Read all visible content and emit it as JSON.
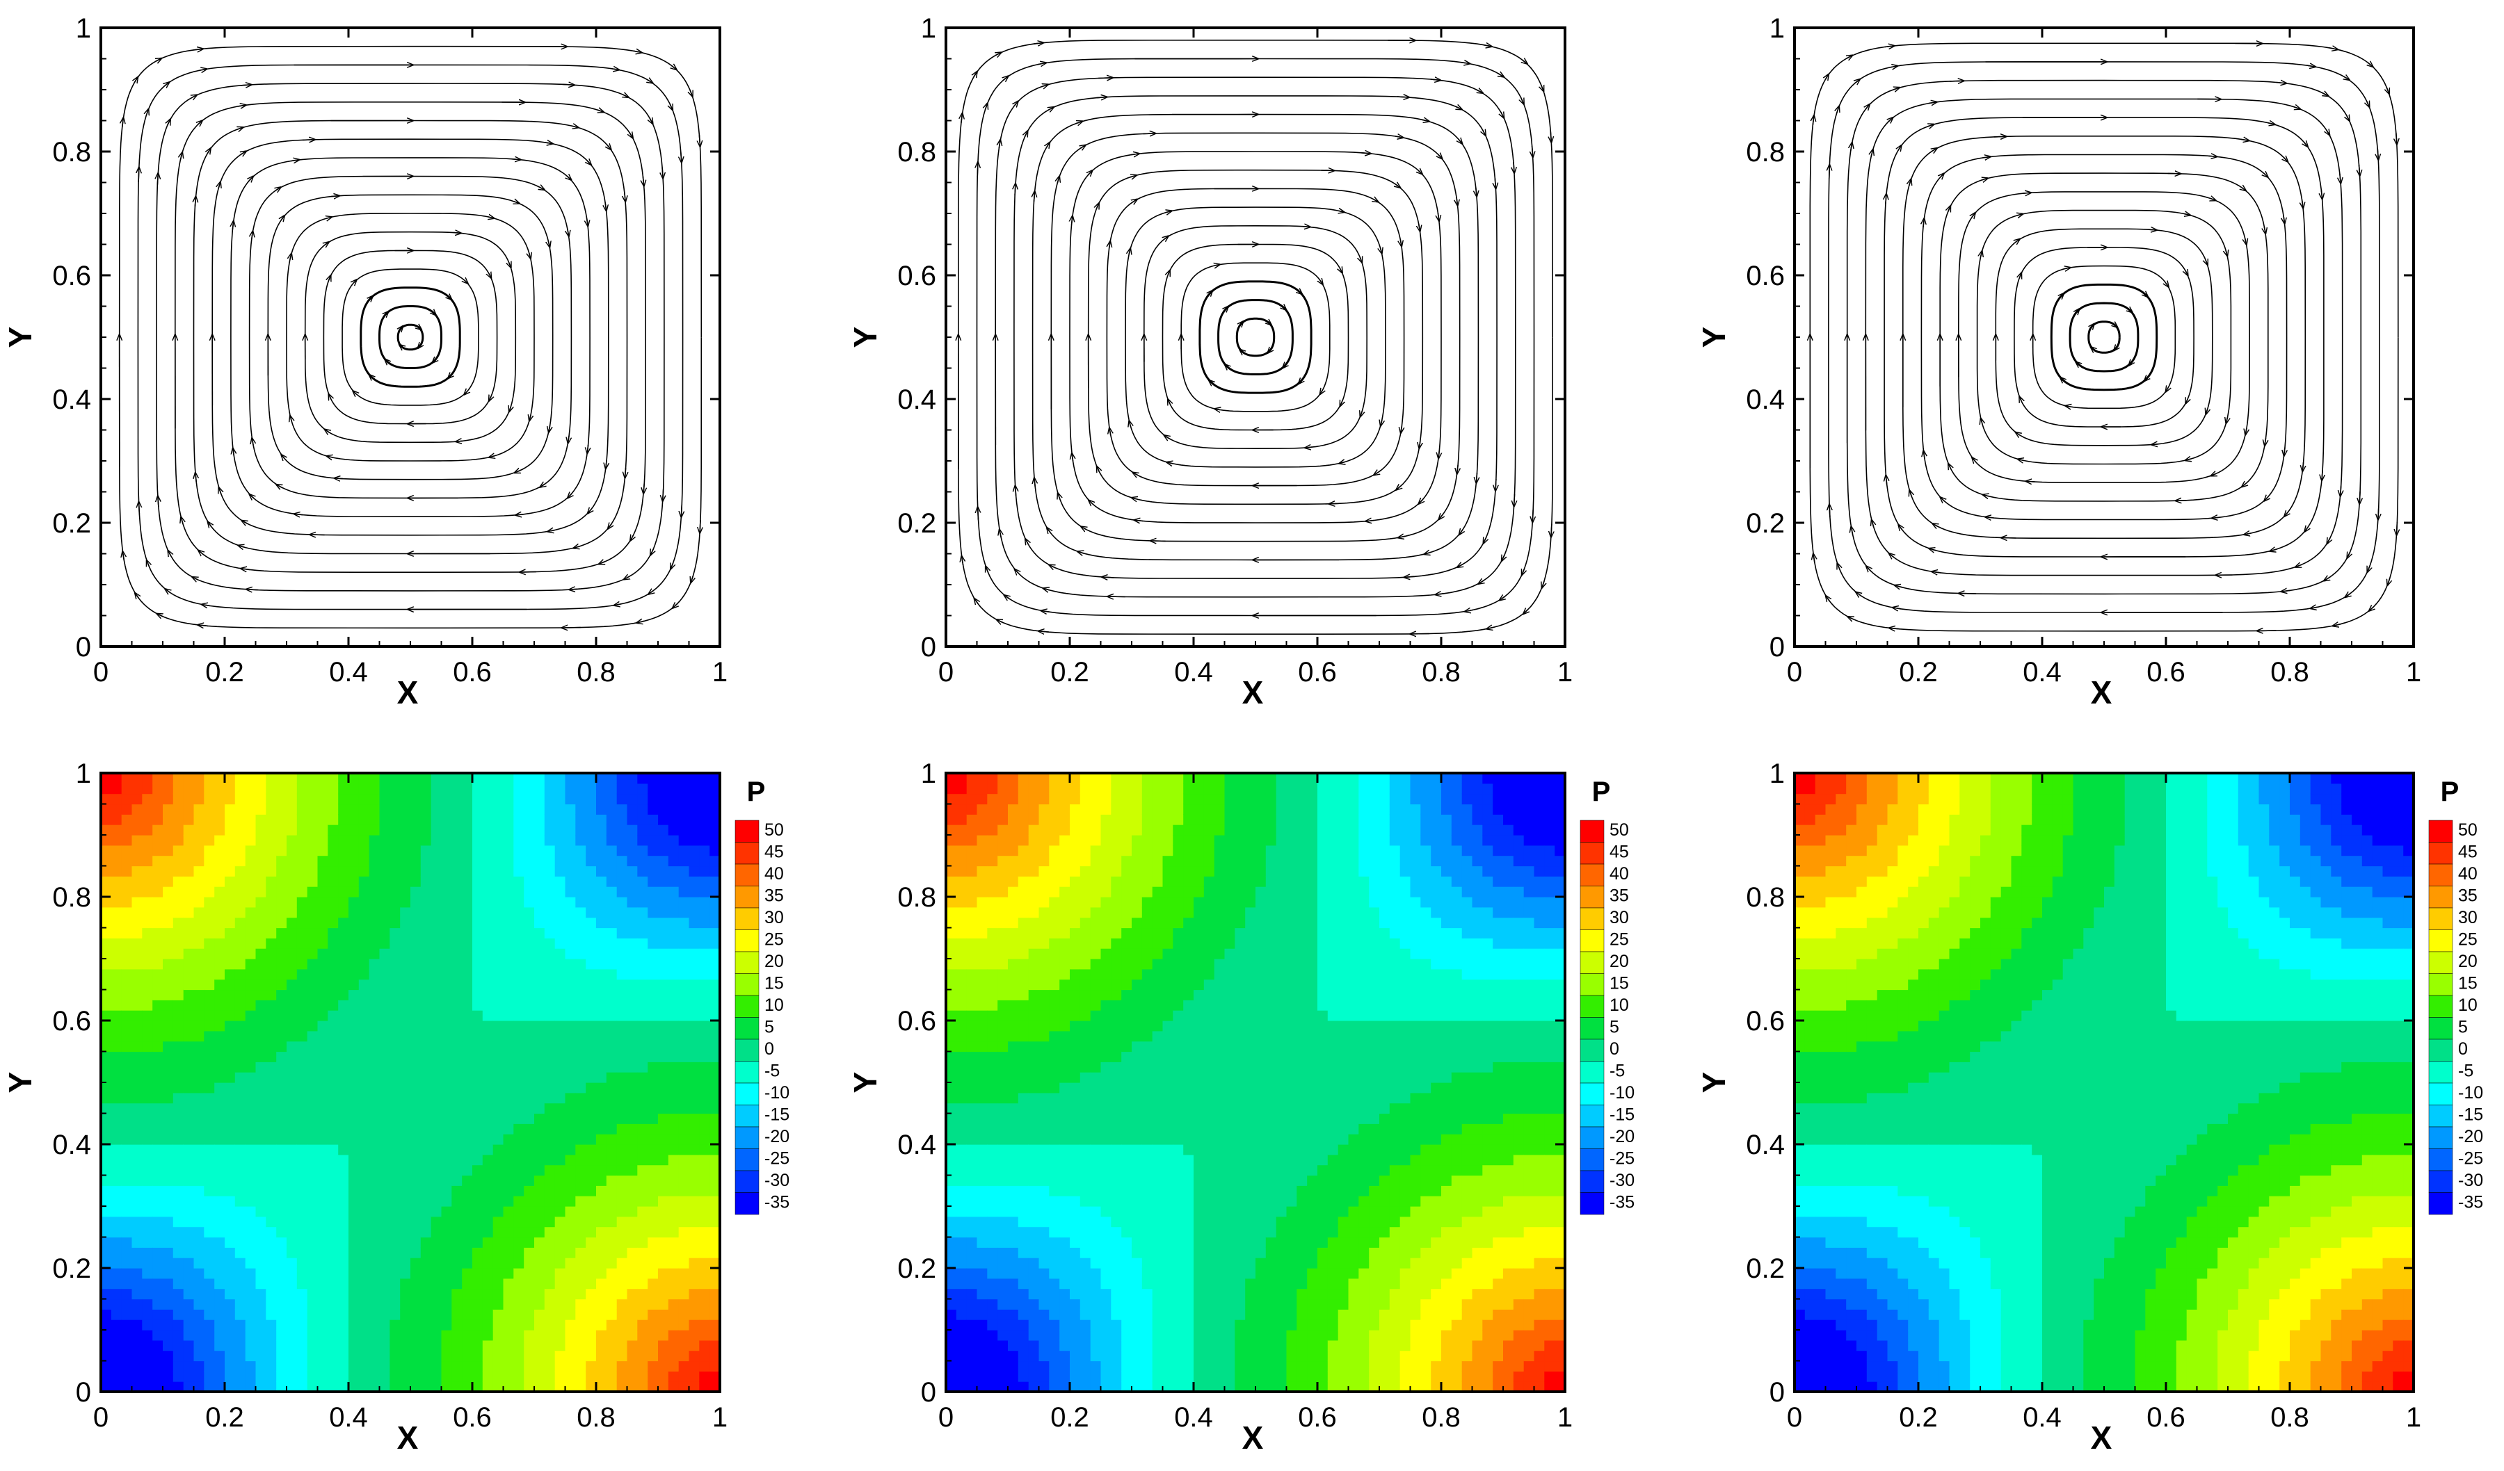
{
  "chart_data": [
    {
      "type": "streamline",
      "panel": "top-left",
      "xlabel": "X",
      "ylabel": "Y",
      "xlim": [
        0,
        1
      ],
      "ylim": [
        0,
        1
      ],
      "xticks": [
        "0",
        "0.2",
        "0.4",
        "0.6",
        "0.8",
        "1"
      ],
      "yticks": [
        "0",
        "0.2",
        "0.4",
        "0.6",
        "0.8",
        "1"
      ],
      "center": [
        0.5,
        0.5
      ],
      "loop_radii": [
        0.02,
        0.05,
        0.08,
        0.11,
        0.14,
        0.17,
        0.2,
        0.23,
        0.26,
        0.29,
        0.32,
        0.35,
        0.38,
        0.41,
        0.44,
        0.47
      ]
    },
    {
      "type": "streamline",
      "panel": "top-middle",
      "xlabel": "X",
      "ylabel": "Y",
      "xlim": [
        0,
        1
      ],
      "ylim": [
        0,
        1
      ],
      "xticks": [
        "0",
        "0.2",
        "0.4",
        "0.6",
        "0.8",
        "1"
      ],
      "yticks": [
        "0",
        "0.2",
        "0.4",
        "0.6",
        "0.8",
        "1"
      ],
      "center": [
        0.5,
        0.5
      ],
      "loop_radii": [
        0.03,
        0.06,
        0.09,
        0.12,
        0.15,
        0.18,
        0.21,
        0.24,
        0.27,
        0.3,
        0.33,
        0.36,
        0.39,
        0.42,
        0.45,
        0.48
      ]
    },
    {
      "type": "streamline",
      "panel": "top-right",
      "xlabel": "X",
      "ylabel": "Y",
      "xlim": [
        0,
        1
      ],
      "ylim": [
        0,
        1
      ],
      "xticks": [
        "0",
        "0.2",
        "0.4",
        "0.6",
        "0.8",
        "1"
      ],
      "yticks": [
        "0",
        "0.2",
        "0.4",
        "0.6",
        "0.8",
        "1"
      ],
      "center": [
        0.5,
        0.5
      ],
      "loop_radii": [
        0.025,
        0.055,
        0.085,
        0.115,
        0.145,
        0.175,
        0.205,
        0.235,
        0.265,
        0.295,
        0.325,
        0.355,
        0.385,
        0.415,
        0.445,
        0.475
      ]
    },
    {
      "type": "contour",
      "panel": "bottom-left",
      "xlabel": "X",
      "ylabel": "Y",
      "xlim": [
        0,
        1
      ],
      "ylim": [
        0,
        1
      ],
      "xticks": [
        "0",
        "0.2",
        "0.4",
        "0.6",
        "0.8",
        "1"
      ],
      "yticks": [
        "0",
        "0.2",
        "0.4",
        "0.6",
        "0.8",
        "1"
      ],
      "legend_title": "P",
      "levels": [
        50,
        45,
        40,
        35,
        30,
        25,
        20,
        15,
        10,
        5,
        0,
        -5,
        -10,
        -15,
        -20,
        -25,
        -30,
        -35
      ],
      "extrema": [
        {
          "x": 0.0,
          "y": 1.0,
          "value": 50
        },
        {
          "x": 1.0,
          "y": 0.0,
          "value": 50
        },
        {
          "x": 1.0,
          "y": 1.0,
          "value": -35
        },
        {
          "x": 0.0,
          "y": 0.0,
          "value": -35
        }
      ]
    },
    {
      "type": "contour",
      "panel": "bottom-middle",
      "xlabel": "X",
      "ylabel": "Y",
      "xlim": [
        0,
        1
      ],
      "ylim": [
        0,
        1
      ],
      "xticks": [
        "0",
        "0.2",
        "0.4",
        "0.6",
        "0.8",
        "1"
      ],
      "yticks": [
        "0",
        "0.2",
        "0.4",
        "0.6",
        "0.8",
        "1"
      ],
      "legend_title": "P",
      "levels": [
        50,
        45,
        40,
        35,
        30,
        25,
        20,
        15,
        10,
        5,
        0,
        -5,
        -10,
        -15,
        -20,
        -25,
        -30,
        -35
      ],
      "extrema": [
        {
          "x": 0.0,
          "y": 1.0,
          "value": 50
        },
        {
          "x": 1.0,
          "y": 0.0,
          "value": 50
        },
        {
          "x": 1.0,
          "y": 1.0,
          "value": -35
        },
        {
          "x": 0.0,
          "y": 0.0,
          "value": -35
        }
      ]
    },
    {
      "type": "contour",
      "panel": "bottom-right",
      "xlabel": "X",
      "ylabel": "Y",
      "xlim": [
        0,
        1
      ],
      "ylim": [
        0,
        1
      ],
      "xticks": [
        "0",
        "0.2",
        "0.4",
        "0.6",
        "0.8",
        "1"
      ],
      "yticks": [
        "0",
        "0.2",
        "0.4",
        "0.6",
        "0.8",
        "1"
      ],
      "legend_title": "P",
      "levels": [
        50,
        45,
        40,
        35,
        30,
        25,
        20,
        15,
        10,
        5,
        0,
        -5,
        -10,
        -15,
        -20,
        -25,
        -30,
        -35
      ],
      "extrema": [
        {
          "x": 0.0,
          "y": 1.0,
          "value": 50
        },
        {
          "x": 1.0,
          "y": 0.0,
          "value": 50
        },
        {
          "x": 1.0,
          "y": 1.0,
          "value": -35
        },
        {
          "x": 0.0,
          "y": 0.0,
          "value": -35
        }
      ]
    }
  ],
  "colors": {
    "levels": [
      "#ff0000",
      "#ff3300",
      "#ff6600",
      "#ff9900",
      "#ffcc00",
      "#ffff00",
      "#ccff00",
      "#99ff00",
      "#33ee00",
      "#00e040",
      "#00e088",
      "#00ffcc",
      "#00ffff",
      "#00ccff",
      "#0099ff",
      "#0066ff",
      "#0033ff",
      "#0000ff"
    ],
    "line": "#000000",
    "frame": "#000000"
  }
}
